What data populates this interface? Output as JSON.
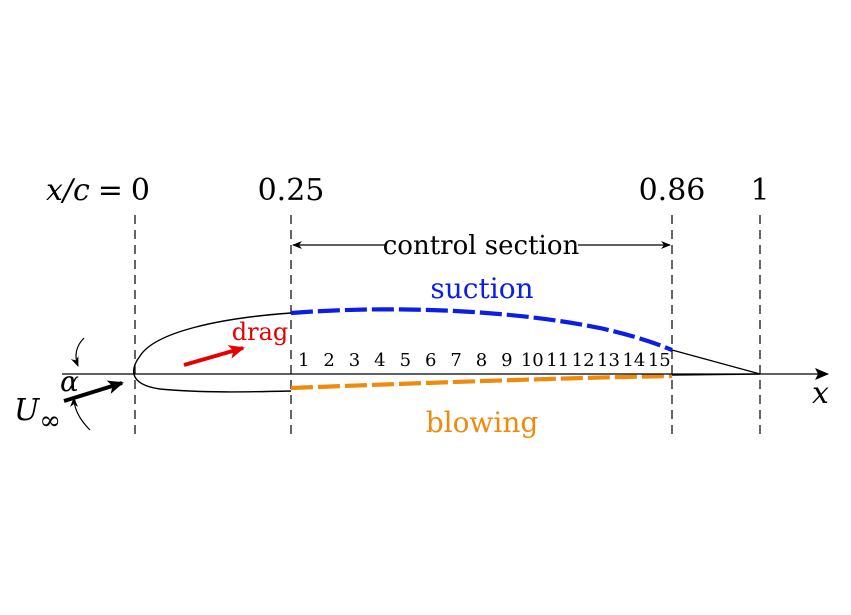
{
  "stations": {
    "x_over_c": "x/c",
    "equals": "=",
    "zero": "0",
    "quarter": "0.25",
    "end_control": "0.86",
    "one": "1"
  },
  "control": {
    "label": "control section",
    "segments": [
      "1",
      "2",
      "3",
      "4",
      "5",
      "6",
      "7",
      "8",
      "9",
      "10",
      "11",
      "12",
      "13",
      "14",
      "15"
    ]
  },
  "labels": {
    "suction": "suction",
    "blowing": "blowing",
    "drag": "drag",
    "alpha": "α",
    "u": "U",
    "infinity": "∞",
    "x_axis": "x"
  },
  "colors": {
    "suction": "#0a1ee6",
    "blowing": "#f08a0c",
    "drag": "#e60000",
    "ink": "#000000"
  }
}
